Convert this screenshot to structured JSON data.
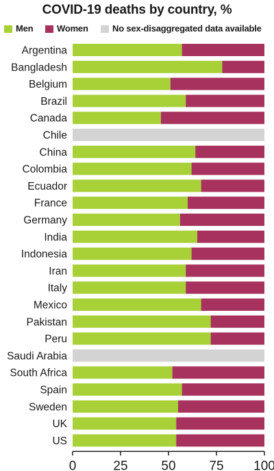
{
  "chart_data": {
    "type": "bar",
    "stacked": true,
    "orientation": "horizontal",
    "title": "COVID-19 deaths by country, %",
    "xlabel": "",
    "ylabel": "",
    "xlim": [
      0,
      100
    ],
    "x_ticks": [
      "0",
      "25",
      "50",
      "75",
      "100"
    ],
    "legend_position": "top",
    "grid": false,
    "categories": [
      "Argentina",
      "Bangladesh",
      "Belgium",
      "Brazil",
      "Canada",
      "Chile",
      "China",
      "Colombia",
      "Ecuador",
      "France",
      "Germany",
      "India",
      "Indonesia",
      "Iran",
      "Italy",
      "Mexico",
      "Pakistan",
      "Peru",
      "Saudi Arabia",
      "South Africa",
      "Spain",
      "Sweden",
      "UK",
      "US"
    ],
    "series": [
      {
        "name": "Men",
        "color": "#a8d037",
        "values": [
          57,
          78,
          51,
          59,
          46,
          null,
          64,
          62,
          67,
          60,
          56,
          65,
          62,
          59,
          59,
          67,
          72,
          72,
          null,
          52,
          57,
          55,
          54,
          54
        ]
      },
      {
        "name": "Women",
        "color": "#a8325e",
        "values": [
          43,
          22,
          49,
          41,
          54,
          null,
          36,
          38,
          33,
          40,
          44,
          35,
          38,
          41,
          41,
          33,
          28,
          28,
          null,
          48,
          43,
          45,
          46,
          46
        ]
      },
      {
        "name": "No sex-disaggregated data available",
        "color": "#d3d3d3",
        "values": [
          null,
          null,
          null,
          null,
          null,
          100,
          null,
          null,
          null,
          null,
          null,
          null,
          null,
          null,
          null,
          null,
          null,
          null,
          100,
          null,
          null,
          null,
          null,
          null
        ]
      }
    ]
  }
}
